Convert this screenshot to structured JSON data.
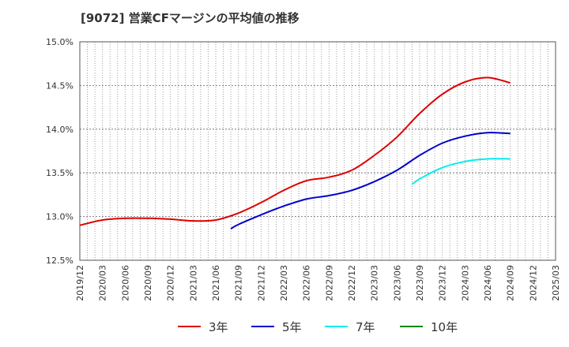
{
  "chart_data": {
    "type": "line",
    "title": "[9072]  営業CFマージンの平均値の推移",
    "xlabel": "",
    "ylabel": "",
    "ylim": [
      12.5,
      15.0
    ],
    "yticks": [
      12.5,
      13.0,
      13.5,
      14.0,
      14.5,
      15.0
    ],
    "ytick_labels": [
      "12.5%",
      "13.0%",
      "13.5%",
      "14.0%",
      "14.5%",
      "15.0%"
    ],
    "x_start": "2019/12",
    "x_end": "2025/03",
    "xtick_labels": [
      "2019/12",
      "2020/03",
      "2020/06",
      "2020/09",
      "2020/12",
      "2021/03",
      "2021/06",
      "2021/09",
      "2021/12",
      "2022/03",
      "2022/06",
      "2022/09",
      "2022/12",
      "2023/03",
      "2023/06",
      "2023/09",
      "2023/12",
      "2024/03",
      "2024/06",
      "2024/09",
      "2024/12",
      "2025/03"
    ],
    "grid": true,
    "legend_position": "bottom",
    "series": [
      {
        "name": "3年",
        "color": "#dd0000",
        "points": [
          [
            "2019/12",
            12.9
          ],
          [
            "2020/03",
            12.96
          ],
          [
            "2020/06",
            12.98
          ],
          [
            "2020/09",
            12.98
          ],
          [
            "2020/12",
            12.97
          ],
          [
            "2021/03",
            12.95
          ],
          [
            "2021/06",
            12.96
          ],
          [
            "2021/09",
            13.04
          ],
          [
            "2021/12",
            13.16
          ],
          [
            "2022/03",
            13.3
          ],
          [
            "2022/06",
            13.41
          ],
          [
            "2022/09",
            13.45
          ],
          [
            "2022/12",
            13.53
          ],
          [
            "2023/03",
            13.7
          ],
          [
            "2023/06",
            13.91
          ],
          [
            "2023/09",
            14.18
          ],
          [
            "2023/12",
            14.4
          ],
          [
            "2024/03",
            14.54
          ],
          [
            "2024/06",
            14.59
          ],
          [
            "2024/09",
            14.53
          ]
        ]
      },
      {
        "name": "5年",
        "color": "#0000cc",
        "points": [
          [
            "2021/08",
            12.86
          ],
          [
            "2021/09",
            12.91
          ],
          [
            "2021/12",
            13.02
          ],
          [
            "2022/03",
            13.12
          ],
          [
            "2022/06",
            13.2
          ],
          [
            "2022/09",
            13.24
          ],
          [
            "2022/12",
            13.3
          ],
          [
            "2023/03",
            13.4
          ],
          [
            "2023/06",
            13.53
          ],
          [
            "2023/09",
            13.7
          ],
          [
            "2023/12",
            13.84
          ],
          [
            "2024/03",
            13.92
          ],
          [
            "2024/06",
            13.96
          ],
          [
            "2024/09",
            13.95
          ]
        ]
      },
      {
        "name": "7年",
        "color": "#00eeee",
        "points": [
          [
            "2023/08",
            13.37
          ],
          [
            "2023/09",
            13.43
          ],
          [
            "2023/12",
            13.56
          ],
          [
            "2024/03",
            13.63
          ],
          [
            "2024/06",
            13.66
          ],
          [
            "2024/09",
            13.66
          ]
        ]
      },
      {
        "name": "10年",
        "color": "#008800",
        "points": []
      }
    ]
  }
}
